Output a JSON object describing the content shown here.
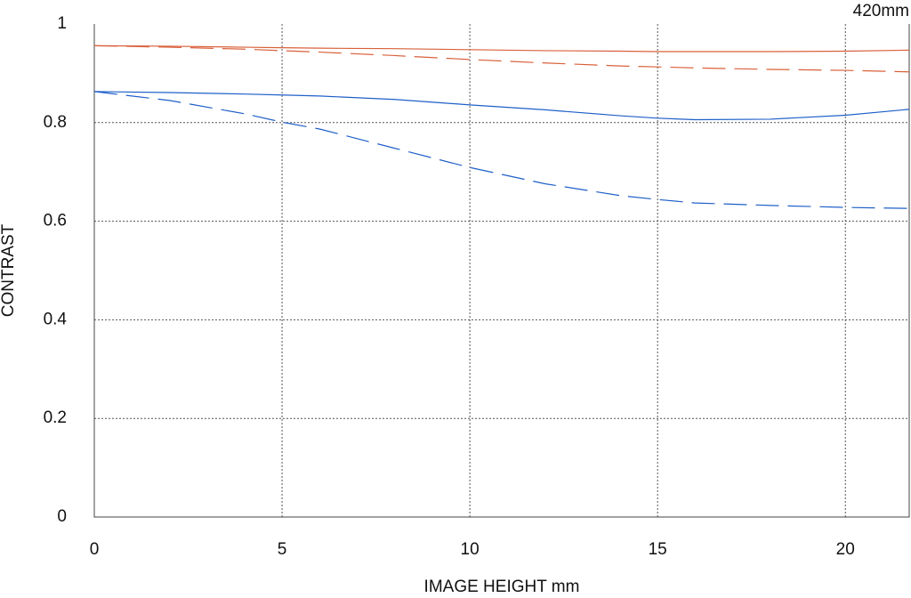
{
  "chart_data": {
    "type": "line",
    "title": "420mm",
    "x_label": "IMAGE HEIGHT  mm",
    "y_label": "CONTRAST",
    "x": [
      0,
      2,
      4,
      5,
      6,
      8,
      10,
      12,
      14,
      15,
      16,
      18,
      20,
      21.7
    ],
    "series": [
      {
        "color": "#d9603b",
        "dashed": false,
        "values": [
          0.956,
          0.955,
          0.953,
          0.952,
          0.951,
          0.95,
          0.948,
          0.946,
          0.945,
          0.944,
          0.944,
          0.944,
          0.945,
          0.947
        ]
      },
      {
        "color": "#d9603b",
        "dashed": true,
        "values": [
          0.956,
          0.953,
          0.949,
          0.946,
          0.943,
          0.936,
          0.928,
          0.921,
          0.915,
          0.913,
          0.911,
          0.908,
          0.906,
          0.903
        ]
      },
      {
        "color": "#1f5fc8",
        "dashed": false,
        "values": [
          0.863,
          0.861,
          0.858,
          0.856,
          0.854,
          0.847,
          0.836,
          0.826,
          0.814,
          0.809,
          0.806,
          0.807,
          0.815,
          0.827
        ]
      },
      {
        "color": "#1f5fc8",
        "dashed": true,
        "values": [
          0.863,
          0.845,
          0.818,
          0.801,
          0.787,
          0.748,
          0.709,
          0.676,
          0.652,
          0.644,
          0.637,
          0.632,
          0.628,
          0.626
        ]
      }
    ],
    "xlim": [
      0,
      21.7
    ],
    "ylim": [
      0,
      1
    ],
    "xticks": [
      0,
      5,
      10,
      15,
      20
    ],
    "yticks": [
      0,
      0.2,
      0.4,
      0.6,
      0.8,
      1
    ],
    "grid": true
  }
}
